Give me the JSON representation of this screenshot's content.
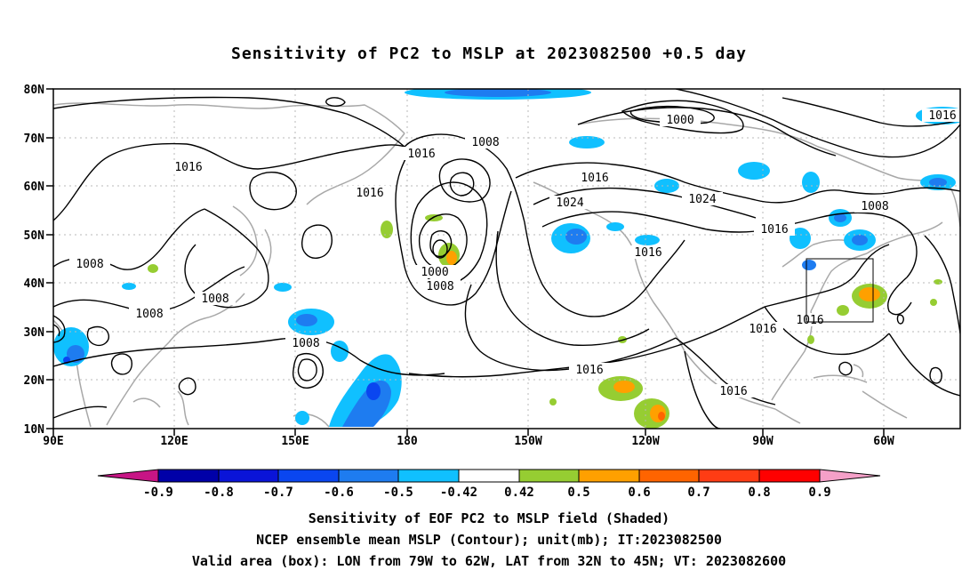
{
  "title": "Sensitivity of PC2 to MSLP at 2023082500 +0.5 day",
  "lat_ticks": [
    "80N",
    "70N",
    "60N",
    "50N",
    "40N",
    "30N",
    "20N",
    "10N"
  ],
  "lon_ticks": [
    "90E",
    "120E",
    "150E",
    "180",
    "150W",
    "120W",
    "90W",
    "60W"
  ],
  "contour_labels": [
    "1016",
    "1008",
    "1000",
    "1024"
  ],
  "colorbar": {
    "labels": [
      "-0.9",
      "-0.8",
      "-0.7",
      "-0.6",
      "-0.5",
      "-0.42",
      "0.42",
      "0.5",
      "0.6",
      "0.7",
      "0.8",
      "0.9"
    ],
    "colors": [
      "#c71585",
      "#0000a8",
      "#0a14d8",
      "#0a46f0",
      "#1e7cf0",
      "#10c0ff",
      "#ffffff",
      "#96cd32",
      "#ffa000",
      "#ff6400",
      "#ff3c14",
      "#ff0000",
      "#f5a0c8"
    ]
  },
  "valid_box": {
    "lon_from": "79W",
    "lon_to": "62W",
    "lat_from": "32N",
    "lat_to": "45N"
  },
  "captions": [
    "Sensitivity of EOF PC2 to MSLP field (Shaded)",
    "NCEP ensemble mean MSLP (Contour); unit(mb); IT:2023082500",
    "Valid area (box): LON from 79W to 62W, LAT from 32N to 45N; VT: 2023082600"
  ]
}
